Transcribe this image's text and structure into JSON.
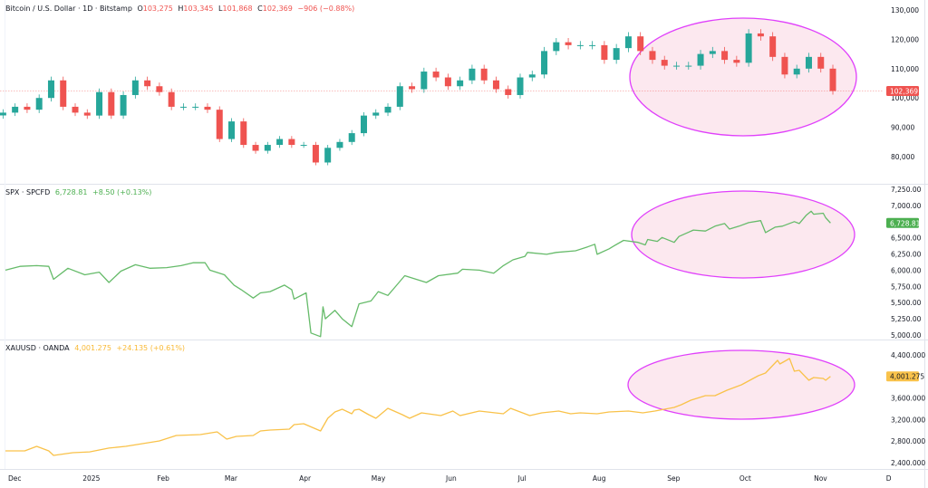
{
  "colors": {
    "up": "#26a69a",
    "down": "#ef5350",
    "spx": "#66bb6a",
    "gold": "#f9c24a",
    "annotation": "#e040fb",
    "annotation_fill": "#fce4ec"
  },
  "panes": [
    {
      "legend": {
        "title": "Bitcoin / U.S. Dollar · 1D · Bitstamp",
        "o_label": "O",
        "o": "103,275",
        "h_label": "H",
        "h": "103,345",
        "l_label": "L",
        "l": "101,868",
        "c_label": "C",
        "c": "102,369",
        "change": "−906 (−0.88%)"
      }
    },
    {
      "legend": {
        "title": "SPX · SPCFD",
        "value": "6,728.81",
        "change": "+8.50 (+0.13%)"
      }
    },
    {
      "legend": {
        "title": "XAUUSD · OANDA",
        "value": "4,001.275",
        "change": "+24.135 (+0.61%)"
      }
    }
  ],
  "chart_data": [
    {
      "type": "candlestick",
      "title": "Bitcoin / U.S. Dollar · 1D · Bitstamp",
      "ylim": [
        70740,
        133400
      ],
      "yticks": [
        "130,000",
        "120,000",
        "110,000",
        "100,000",
        "90,000",
        "80,000"
      ],
      "ytick_values": [
        130000,
        120000,
        110000,
        100000,
        90000,
        80000
      ],
      "last_price": 102369,
      "last_price_label": "102,369",
      "annotation": "ellipse around Aug–Nov 2025",
      "series": [
        [
          "2024-11-27",
          95000
        ],
        [
          "2024-12-02",
          97000
        ],
        [
          "2024-12-07",
          96000
        ],
        [
          "2024-12-12",
          100000
        ],
        [
          "2024-12-17",
          106000
        ],
        [
          "2024-12-22",
          97000
        ],
        [
          "2024-12-27",
          95000
        ],
        [
          "2025-01-01",
          94000
        ],
        [
          "2025-01-06",
          102000
        ],
        [
          "2025-01-11",
          94000
        ],
        [
          "2025-01-16",
          101000
        ],
        [
          "2025-01-21",
          106000
        ],
        [
          "2025-01-26",
          104000
        ],
        [
          "2025-01-31",
          102000
        ],
        [
          "2025-02-05",
          97000
        ],
        [
          "2025-02-10",
          97000
        ],
        [
          "2025-02-15",
          97000
        ],
        [
          "2025-02-20",
          96000
        ],
        [
          "2025-02-25",
          86000
        ],
        [
          "2025-03-02",
          92000
        ],
        [
          "2025-03-07",
          84000
        ],
        [
          "2025-03-12",
          82000
        ],
        [
          "2025-03-17",
          84000
        ],
        [
          "2025-03-22",
          86000
        ],
        [
          "2025-03-27",
          84000
        ],
        [
          "2025-04-01",
          84000
        ],
        [
          "2025-04-06",
          78000
        ],
        [
          "2025-04-11",
          83000
        ],
        [
          "2025-04-16",
          85000
        ],
        [
          "2025-04-21",
          88000
        ],
        [
          "2025-04-26",
          94000
        ],
        [
          "2025-05-01",
          95000
        ],
        [
          "2025-05-06",
          97000
        ],
        [
          "2025-05-11",
          104000
        ],
        [
          "2025-05-16",
          103000
        ],
        [
          "2025-05-21",
          109000
        ],
        [
          "2025-05-26",
          107000
        ],
        [
          "2025-05-31",
          104000
        ],
        [
          "2025-06-05",
          106000
        ],
        [
          "2025-06-10",
          110000
        ],
        [
          "2025-06-15",
          106000
        ],
        [
          "2025-06-20",
          103000
        ],
        [
          "2025-06-25",
          101000
        ],
        [
          "2025-06-30",
          107000
        ],
        [
          "2025-07-05",
          108000
        ],
        [
          "2025-07-10",
          116000
        ],
        [
          "2025-07-15",
          119000
        ],
        [
          "2025-07-20",
          118000
        ],
        [
          "2025-07-25",
          118000
        ],
        [
          "2025-07-30",
          118000
        ],
        [
          "2025-08-04",
          113000
        ],
        [
          "2025-08-09",
          117000
        ],
        [
          "2025-08-14",
          121000
        ],
        [
          "2025-08-19",
          116000
        ],
        [
          "2025-08-24",
          113000
        ],
        [
          "2025-08-29",
          111000
        ],
        [
          "2025-09-03",
          111000
        ],
        [
          "2025-09-08",
          111000
        ],
        [
          "2025-09-13",
          115000
        ],
        [
          "2025-09-18",
          116000
        ],
        [
          "2025-09-23",
          113000
        ],
        [
          "2025-09-28",
          112000
        ],
        [
          "2025-10-03",
          122000
        ],
        [
          "2025-10-08",
          121000
        ],
        [
          "2025-10-13",
          114000
        ],
        [
          "2025-10-18",
          108000
        ],
        [
          "2025-10-23",
          110000
        ],
        [
          "2025-10-28",
          114000
        ],
        [
          "2025-11-02",
          110000
        ],
        [
          "2025-11-07",
          102369
        ]
      ]
    },
    {
      "type": "line",
      "title": "SPX · SPCFD",
      "ylim": [
        4930,
        7334
      ],
      "yticks": [
        "7,250.00",
        "7,000.00",
        "6,500.00",
        "6,250.00",
        "6,000.00",
        "5,750.00",
        "5,500.00",
        "5,250.00",
        "5,000.00"
      ],
      "ytick_values": [
        7250,
        7000,
        6500,
        6250,
        6000,
        5750,
        5500,
        5250,
        5000
      ],
      "last_price": 6728.81,
      "last_price_label": "6,728.81",
      "annotation": "ellipse around Aug–Nov 2025",
      "series": [
        [
          "2024-11-28",
          6000
        ],
        [
          "2024-12-04",
          6060
        ],
        [
          "2024-12-11",
          6070
        ],
        [
          "2024-12-16",
          6060
        ],
        [
          "2024-12-18",
          5860
        ],
        [
          "2024-12-24",
          6030
        ],
        [
          "2024-12-31",
          5930
        ],
        [
          "2025-01-06",
          5970
        ],
        [
          "2025-01-10",
          5810
        ],
        [
          "2025-01-15",
          5985
        ],
        [
          "2025-01-21",
          6085
        ],
        [
          "2025-01-27",
          6030
        ],
        [
          "2025-02-03",
          6040
        ],
        [
          "2025-02-09",
          6070
        ],
        [
          "2025-02-14",
          6115
        ],
        [
          "2025-02-19",
          6115
        ],
        [
          "2025-02-21",
          6000
        ],
        [
          "2025-02-27",
          5930
        ],
        [
          "2025-03-03",
          5770
        ],
        [
          "2025-03-06",
          5700
        ],
        [
          "2025-03-11",
          5570
        ],
        [
          "2025-03-14",
          5650
        ],
        [
          "2025-03-18",
          5670
        ],
        [
          "2025-03-24",
          5770
        ],
        [
          "2025-03-27",
          5700
        ],
        [
          "2025-03-28",
          5555
        ],
        [
          "2025-04-02",
          5650
        ],
        [
          "2025-04-04",
          5030
        ],
        [
          "2025-04-08",
          4975
        ],
        [
          "2025-04-09",
          5435
        ],
        [
          "2025-04-10",
          5250
        ],
        [
          "2025-04-14",
          5380
        ],
        [
          "2025-04-17",
          5250
        ],
        [
          "2025-04-21",
          5130
        ],
        [
          "2025-04-24",
          5480
        ],
        [
          "2025-04-29",
          5525
        ],
        [
          "2025-05-02",
          5670
        ],
        [
          "2025-05-06",
          5610
        ],
        [
          "2025-05-09",
          5740
        ],
        [
          "2025-05-13",
          5915
        ],
        [
          "2025-05-22",
          5810
        ],
        [
          "2025-05-27",
          5915
        ],
        [
          "2025-06-04",
          5955
        ],
        [
          "2025-06-06",
          6015
        ],
        [
          "2025-06-13",
          6000
        ],
        [
          "2025-06-19",
          5955
        ],
        [
          "2025-06-23",
          6070
        ],
        [
          "2025-06-27",
          6160
        ],
        [
          "2025-07-02",
          6215
        ],
        [
          "2025-07-03",
          6275
        ],
        [
          "2025-07-11",
          6245
        ],
        [
          "2025-07-15",
          6275
        ],
        [
          "2025-07-23",
          6300
        ],
        [
          "2025-07-28",
          6360
        ],
        [
          "2025-07-31",
          6400
        ],
        [
          "2025-08-01",
          6245
        ],
        [
          "2025-08-06",
          6330
        ],
        [
          "2025-08-08",
          6375
        ],
        [
          "2025-08-12",
          6460
        ],
        [
          "2025-08-18",
          6430
        ],
        [
          "2025-08-21",
          6390
        ],
        [
          "2025-08-22",
          6475
        ],
        [
          "2025-08-26",
          6445
        ],
        [
          "2025-08-28",
          6505
        ],
        [
          "2025-09-02",
          6430
        ],
        [
          "2025-09-04",
          6520
        ],
        [
          "2025-09-10",
          6620
        ],
        [
          "2025-09-15",
          6605
        ],
        [
          "2025-09-19",
          6680
        ],
        [
          "2025-09-23",
          6720
        ],
        [
          "2025-09-25",
          6635
        ],
        [
          "2025-09-29",
          6680
        ],
        [
          "2025-10-03",
          6735
        ],
        [
          "2025-10-08",
          6765
        ],
        [
          "2025-10-10",
          6580
        ],
        [
          "2025-10-14",
          6665
        ],
        [
          "2025-10-17",
          6680
        ],
        [
          "2025-10-22",
          6750
        ],
        [
          "2025-10-24",
          6720
        ],
        [
          "2025-10-27",
          6850
        ],
        [
          "2025-10-29",
          6910
        ],
        [
          "2025-10-30",
          6865
        ],
        [
          "2025-11-03",
          6880
        ],
        [
          "2025-11-04",
          6810
        ],
        [
          "2025-11-06",
          6728.81
        ]
      ]
    },
    {
      "type": "line",
      "title": "XAUUSD · OANDA",
      "ylim": [
        2282,
        4686
      ],
      "yticks": [
        "4,400.000",
        "3,600.000",
        "3,200.000",
        "2,800.000",
        "2,400.000"
      ],
      "ytick_values": [
        4400,
        3600,
        3200,
        2800,
        2400
      ],
      "last_price": 4001.275,
      "last_price_label": "4,001.275",
      "annotation": "ellipse around Aug–Nov 2025",
      "series": [
        [
          "2024-11-28",
          2618
        ],
        [
          "2024-12-06",
          2618
        ],
        [
          "2024-12-11",
          2703
        ],
        [
          "2024-12-16",
          2618
        ],
        [
          "2024-12-18",
          2535
        ],
        [
          "2024-12-26",
          2585
        ],
        [
          "2025-01-02",
          2600
        ],
        [
          "2025-01-10",
          2670
        ],
        [
          "2025-01-17",
          2703
        ],
        [
          "2025-01-24",
          2753
        ],
        [
          "2025-01-31",
          2803
        ],
        [
          "2025-02-07",
          2904
        ],
        [
          "2025-02-17",
          2921
        ],
        [
          "2025-02-24",
          2971
        ],
        [
          "2025-02-28",
          2837
        ],
        [
          "2025-03-04",
          2887
        ],
        [
          "2025-03-11",
          2904
        ],
        [
          "2025-03-14",
          2988
        ],
        [
          "2025-03-18",
          3005
        ],
        [
          "2025-03-26",
          3022
        ],
        [
          "2025-03-28",
          3106
        ],
        [
          "2025-04-01",
          3123
        ],
        [
          "2025-04-08",
          2988
        ],
        [
          "2025-04-11",
          3224
        ],
        [
          "2025-04-14",
          3341
        ],
        [
          "2025-04-17",
          3392
        ],
        [
          "2025-04-21",
          3308
        ],
        [
          "2025-04-22",
          3375
        ],
        [
          "2025-04-24",
          3392
        ],
        [
          "2025-04-28",
          3290
        ],
        [
          "2025-05-01",
          3224
        ],
        [
          "2025-05-06",
          3408
        ],
        [
          "2025-05-12",
          3290
        ],
        [
          "2025-05-15",
          3224
        ],
        [
          "2025-05-20",
          3324
        ],
        [
          "2025-05-28",
          3274
        ],
        [
          "2025-06-02",
          3358
        ],
        [
          "2025-06-05",
          3274
        ],
        [
          "2025-06-13",
          3358
        ],
        [
          "2025-06-23",
          3308
        ],
        [
          "2025-06-26",
          3408
        ],
        [
          "2025-07-02",
          3308
        ],
        [
          "2025-07-04",
          3274
        ],
        [
          "2025-07-09",
          3324
        ],
        [
          "2025-07-16",
          3358
        ],
        [
          "2025-07-21",
          3308
        ],
        [
          "2025-07-25",
          3324
        ],
        [
          "2025-08-01",
          3308
        ],
        [
          "2025-08-06",
          3341
        ],
        [
          "2025-08-14",
          3358
        ],
        [
          "2025-08-20",
          3324
        ],
        [
          "2025-08-25",
          3358
        ],
        [
          "2025-08-29",
          3392
        ],
        [
          "2025-09-02",
          3425
        ],
        [
          "2025-09-05",
          3476
        ],
        [
          "2025-09-09",
          3560
        ],
        [
          "2025-09-15",
          3644
        ],
        [
          "2025-09-19",
          3644
        ],
        [
          "2025-09-24",
          3745
        ],
        [
          "2025-09-30",
          3845
        ],
        [
          "2025-10-07",
          4013
        ],
        [
          "2025-10-10",
          4064
        ],
        [
          "2025-10-15",
          4299
        ],
        [
          "2025-10-16",
          4232
        ],
        [
          "2025-10-20",
          4333
        ],
        [
          "2025-10-22",
          4097
        ],
        [
          "2025-10-24",
          4114
        ],
        [
          "2025-10-28",
          3929
        ],
        [
          "2025-10-30",
          3980
        ],
        [
          "2025-11-03",
          3963
        ],
        [
          "2025-11-04",
          3929
        ],
        [
          "2025-11-06",
          4001.275
        ]
      ]
    }
  ],
  "x_axis": {
    "labels": [
      "Dec",
      "2025",
      "Feb",
      "Mar",
      "Apr",
      "May",
      "Jun",
      "Jul",
      "Aug",
      "Sep",
      "Oct",
      "Nov",
      "D"
    ],
    "label_dates": [
      "2024-12-01",
      "2025-01-01",
      "2025-02-01",
      "2025-03-01",
      "2025-04-01",
      "2025-05-01",
      "2025-06-01",
      "2025-07-01",
      "2025-08-01",
      "2025-09-01",
      "2025-10-01",
      "2025-11-01",
      "2025-12-01"
    ]
  }
}
